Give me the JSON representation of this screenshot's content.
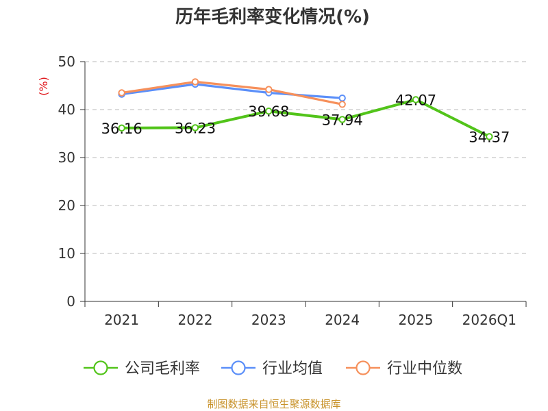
{
  "chart_data": {
    "type": "line",
    "title": "历年毛利率变化情况(%)",
    "ylabel": "(%)",
    "xlabel": "",
    "categories": [
      "2021",
      "2022",
      "2023",
      "2024",
      "2025",
      "2026Q1"
    ],
    "ylim": [
      0,
      50
    ],
    "yticks": [
      0,
      10,
      20,
      30,
      40,
      50
    ],
    "grid": true,
    "legend_position": "bottom",
    "series": [
      {
        "name": "公司毛利率",
        "color": "#52c41a",
        "values": [
          36.16,
          36.23,
          39.68,
          37.94,
          42.07,
          34.37
        ],
        "labels": [
          "36.16",
          "36.23",
          "39.68",
          "37.94",
          "42.07",
          "34.37"
        ]
      },
      {
        "name": "行业均值",
        "color": "#5b8ff9",
        "values": [
          43.2,
          45.3,
          43.5,
          42.4,
          null,
          null
        ]
      },
      {
        "name": "行业中位数",
        "color": "#f6905b",
        "values": [
          43.5,
          45.8,
          44.2,
          41.1,
          null,
          null
        ]
      }
    ]
  },
  "source": "制图数据来自恒生聚源数据库"
}
